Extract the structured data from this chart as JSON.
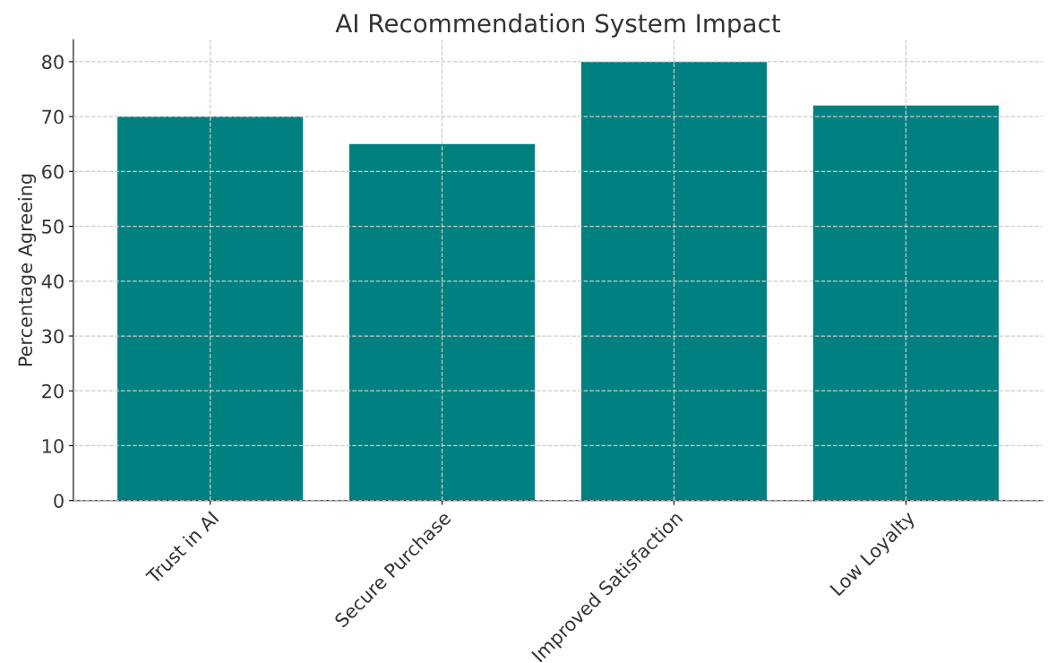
{
  "chart_data": {
    "type": "bar",
    "title": "AI Recommendation System Impact",
    "ylabel": "Percentage Agreeing",
    "categories": [
      "Trust in AI",
      "Secure Purchase",
      "Improved Satisfaction",
      "Low Loyalty"
    ],
    "values": [
      70,
      65,
      80,
      72
    ],
    "color": "#008080",
    "ylim": [
      0,
      84
    ],
    "yticks": [
      0,
      10,
      20,
      30,
      40,
      50,
      60,
      70,
      80
    ],
    "grid": true
  }
}
